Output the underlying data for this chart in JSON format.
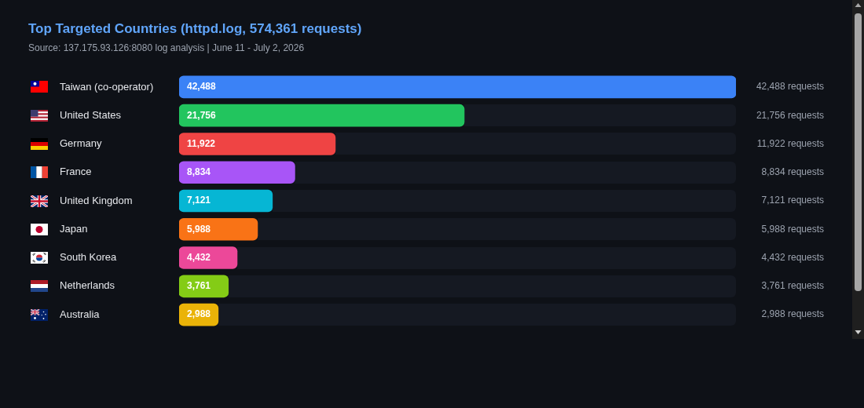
{
  "chart_data": {
    "type": "bar",
    "orientation": "horizontal",
    "title": "Top Targeted Countries (httpd.log, 574,361 requests)",
    "subtitle": "Source: 137.175.93.126:8080 log analysis | June 11 - July 2, 2026",
    "categories": [
      "Taiwan (co-operator)",
      "United States",
      "Germany",
      "France",
      "United Kingdom",
      "Japan",
      "South Korea",
      "Netherlands",
      "Australia"
    ],
    "values": [
      42488,
      21756,
      11922,
      8834,
      7121,
      5988,
      4432,
      3761,
      2988
    ],
    "colors": [
      "#3b82f6",
      "#22c55e",
      "#ef4444",
      "#a855f7",
      "#06b6d4",
      "#f97316",
      "#ec4899",
      "#84cc16",
      "#eab308"
    ],
    "value_labels": [
      "42,488",
      "21,756",
      "11,922",
      "8,834",
      "7,121",
      "5,988",
      "4,432",
      "3,761",
      "2,988"
    ],
    "annotations": [
      "42,488 requests",
      "21,756 requests",
      "11,922 requests",
      "8,834 requests",
      "7,121 requests",
      "5,988 requests",
      "4,432 requests",
      "3,761 requests",
      "2,988 requests"
    ]
  }
}
